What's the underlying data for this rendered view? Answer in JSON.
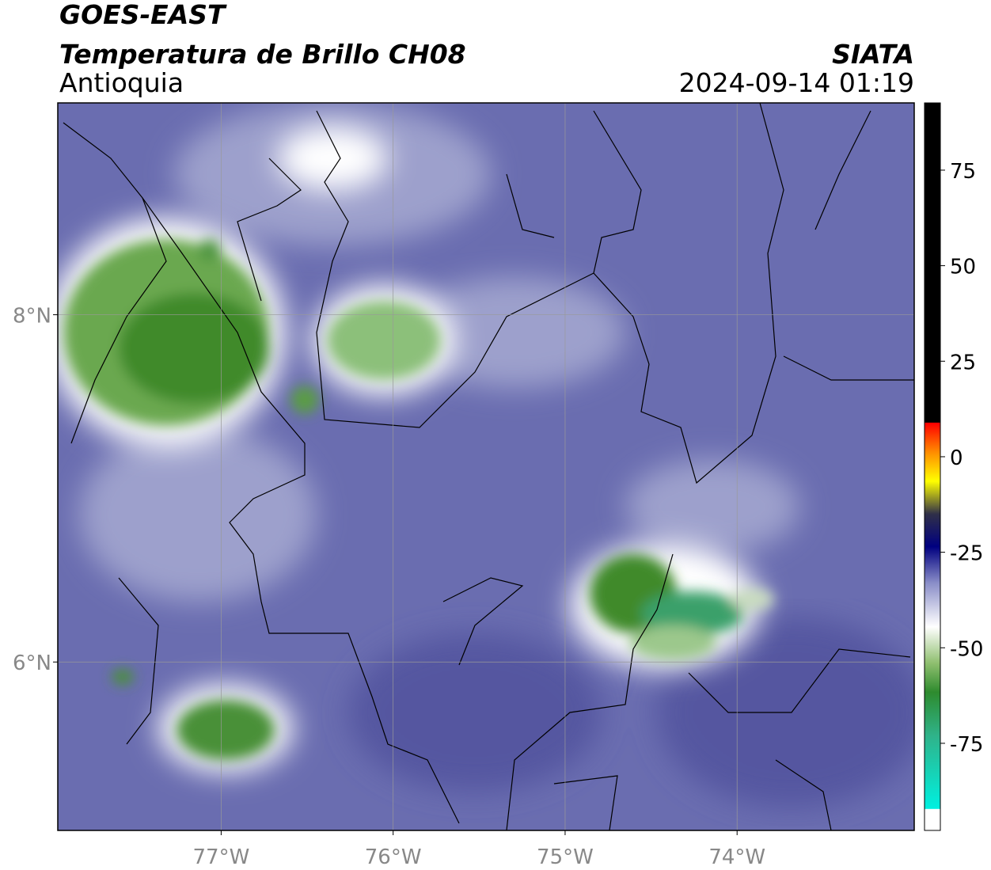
{
  "header": {
    "title": "GOES-EAST",
    "subtitle": "Temperatura de Brillo CH08",
    "region": "Antioquia",
    "source": "SIATA",
    "datetime": "2024-09-14 01:19"
  },
  "map": {
    "type": "map",
    "xlim": [
      -77.95,
      -72.97
    ],
    "ylim": [
      5.03,
      9.22
    ],
    "xticks": [
      {
        "value": -77,
        "label": "77°W"
      },
      {
        "value": -76,
        "label": "76°W"
      },
      {
        "value": -75,
        "label": "75°W"
      },
      {
        "value": -74,
        "label": "74°W"
      }
    ],
    "yticks": [
      {
        "value": 8,
        "label": "8°N"
      },
      {
        "value": 6,
        "label": "6°N"
      }
    ],
    "grid": true
  },
  "colorbar": {
    "lim": [
      -97.8,
      92.6
    ],
    "ticks": [
      75,
      50,
      25,
      0,
      -25,
      -50,
      -75
    ]
  }
}
